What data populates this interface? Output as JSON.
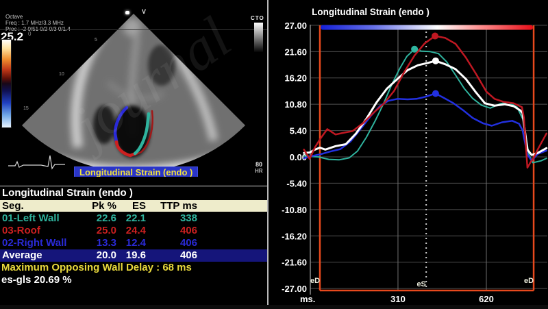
{
  "ultrasound": {
    "mode_label": "Octave",
    "freq_label": "Freq : 1.7 MHz/3.3 MHz",
    "proc_label": "Proc : -2 0/51 0/2 0/3 0/1.4",
    "gain_value": "25.2",
    "gain_sub": "0",
    "probe_marker": "V",
    "corner_label": "CTO",
    "depth_marks": {
      "d5": "5",
      "d10": "10",
      "d15": "15"
    },
    "hr_value": "80",
    "hr_label": "HR",
    "bottom_label": "Longitudinal Strain (endo )"
  },
  "table": {
    "title": "Longitudinal Strain (endo )",
    "headers": {
      "seg": "Seg.",
      "pk": "Pk %",
      "es": "ES",
      "ttp": "TTP ms"
    },
    "rows": [
      {
        "seg": "01-Left Wall",
        "pk": "22.6",
        "es": "22.1",
        "ttp": "338",
        "color": "#2fb39e"
      },
      {
        "seg": "03-Roof",
        "pk": "25.0",
        "es": "24.4",
        "ttp": "406",
        "color": "#cc2020"
      },
      {
        "seg": "02-Right Wall",
        "pk": "13.3",
        "es": "12.4",
        "ttp": "406",
        "color": "#2a2ad8"
      }
    ],
    "average_row": {
      "seg": "Average",
      "pk": "20.0",
      "es": "19.6",
      "ttp": "406",
      "color": "#ffffff"
    },
    "footer_delay": "Maximum Opposing Wall Delay : 68 ms",
    "footer_gls": "es-gls 20.69 %"
  },
  "watermark_text": "journal",
  "chart_data": {
    "type": "line",
    "title": "Longitudinal Strain (endo )",
    "xlabel": "ms.",
    "x_ticks": [
      310,
      620
    ],
    "y_ticks": [
      27.0,
      21.6,
      16.2,
      10.8,
      5.4,
      0.0,
      -5.4,
      -10.8,
      -16.2,
      -21.6,
      -27.0
    ],
    "ylim": [
      -27,
      27
    ],
    "xlim_ms": [
      -20,
      835
    ],
    "grid": true,
    "roi": {
      "start_ms": 36,
      "end_ms": 786,
      "color": "#e8491d"
    },
    "es_line_ms": 409,
    "markers": {
      "ed_left": "eD",
      "es": "eS",
      "ed_right": "eD"
    },
    "gradient_bar": [
      "#1420d8",
      "#6670e8",
      "#ffffff",
      "#ff9090",
      "#e80e18"
    ],
    "series": [
      {
        "name": "Left Wall",
        "color": "#2fb39e",
        "width": 2,
        "peak": {
          "t": 368,
          "v": 22.1
        },
        "points": [
          [
            -20,
            0.2
          ],
          [
            0,
            0.1
          ],
          [
            31,
            0.0
          ],
          [
            67,
            -0.5
          ],
          [
            103,
            -0.6
          ],
          [
            139,
            -0.2
          ],
          [
            168,
            1.2
          ],
          [
            199,
            4.0
          ],
          [
            231,
            7.5
          ],
          [
            260,
            11.0
          ],
          [
            288,
            14.8
          ],
          [
            315,
            18.0
          ],
          [
            341,
            20.6
          ],
          [
            368,
            22.1
          ],
          [
            392,
            21.7
          ],
          [
            423,
            21.6
          ],
          [
            452,
            21.2
          ],
          [
            481,
            19.5
          ],
          [
            512,
            16.8
          ],
          [
            543,
            14.0
          ],
          [
            572,
            12.0
          ],
          [
            603,
            10.6
          ],
          [
            634,
            10.0
          ],
          [
            668,
            10.9
          ],
          [
            697,
            11.2
          ],
          [
            728,
            10.2
          ],
          [
            750,
            7.5
          ],
          [
            769,
            0.5
          ],
          [
            783,
            -1.2
          ],
          [
            812,
            -0.8
          ],
          [
            831,
            -0.3
          ]
        ]
      },
      {
        "name": "Right Wall",
        "color": "#2230e0",
        "width": 2.5,
        "peak": {
          "t": 442,
          "v": 13.0
        },
        "points": [
          [
            -20,
            -0.3
          ],
          [
            0,
            0.1
          ],
          [
            36,
            0.5
          ],
          [
            72,
            1.1
          ],
          [
            108,
            1.6
          ],
          [
            144,
            3.2
          ],
          [
            180,
            5.8
          ],
          [
            216,
            8.5
          ],
          [
            248,
            10.5
          ],
          [
            276,
            11.5
          ],
          [
            308,
            11.9
          ],
          [
            344,
            11.8
          ],
          [
            375,
            11.9
          ],
          [
            404,
            12.3
          ],
          [
            442,
            13.0
          ],
          [
            471,
            12.1
          ],
          [
            505,
            11.0
          ],
          [
            538,
            9.6
          ],
          [
            572,
            8.0
          ],
          [
            608,
            6.9
          ],
          [
            639,
            6.4
          ],
          [
            675,
            7.1
          ],
          [
            711,
            7.4
          ],
          [
            735,
            6.8
          ],
          [
            747,
            5.5
          ],
          [
            764,
            0.5
          ],
          [
            779,
            -0.8
          ],
          [
            800,
            0.6
          ],
          [
            831,
            1.3
          ]
        ]
      },
      {
        "name": "Average",
        "color": "#ffffff",
        "width": 3,
        "peak": {
          "t": 442,
          "v": 19.7
        },
        "points": [
          [
            -20,
            0.8
          ],
          [
            0,
            0.9
          ],
          [
            19,
            1.5
          ],
          [
            36,
            1.9
          ],
          [
            55,
            1.5
          ],
          [
            91,
            2.2
          ],
          [
            127,
            2.6
          ],
          [
            163,
            4.8
          ],
          [
            199,
            7.8
          ],
          [
            235,
            11.2
          ],
          [
            271,
            14.0
          ],
          [
            308,
            16.0
          ],
          [
            344,
            17.8
          ],
          [
            380,
            18.8
          ],
          [
            416,
            19.3
          ],
          [
            442,
            19.7
          ],
          [
            476,
            19.0
          ],
          [
            512,
            18.0
          ],
          [
            548,
            16.0
          ],
          [
            584,
            13.2
          ],
          [
            615,
            11.0
          ],
          [
            649,
            10.5
          ],
          [
            685,
            10.8
          ],
          [
            716,
            10.4
          ],
          [
            740,
            9.5
          ],
          [
            747,
            9.0
          ],
          [
            764,
            1.5
          ],
          [
            779,
            0.4
          ],
          [
            800,
            0.8
          ],
          [
            831,
            1.8
          ]
        ]
      },
      {
        "name": "Roof",
        "color": "#c01822",
        "width": 2.5,
        "peak": {
          "t": 440,
          "v": 24.8
        },
        "points": [
          [
            -20,
            1.5
          ],
          [
            0,
            -0.4
          ],
          [
            19,
            2.0
          ],
          [
            36,
            3.6
          ],
          [
            62,
            5.7
          ],
          [
            91,
            4.6
          ],
          [
            115,
            4.9
          ],
          [
            151,
            5.3
          ],
          [
            187,
            6.9
          ],
          [
            223,
            9.0
          ],
          [
            260,
            10.9
          ],
          [
            296,
            13.5
          ],
          [
            332,
            17.4
          ],
          [
            368,
            20.8
          ],
          [
            404,
            23.3
          ],
          [
            440,
            24.8
          ],
          [
            476,
            24.4
          ],
          [
            512,
            23.2
          ],
          [
            548,
            20.4
          ],
          [
            584,
            17.0
          ],
          [
            620,
            13.4
          ],
          [
            649,
            11.9
          ],
          [
            680,
            11.3
          ],
          [
            716,
            11.0
          ],
          [
            745,
            10.2
          ],
          [
            752,
            8.0
          ],
          [
            764,
            -2.2
          ],
          [
            776,
            -1.0
          ],
          [
            786,
            -0.2
          ],
          [
            800,
            1.5
          ],
          [
            831,
            4.8
          ]
        ]
      }
    ]
  }
}
